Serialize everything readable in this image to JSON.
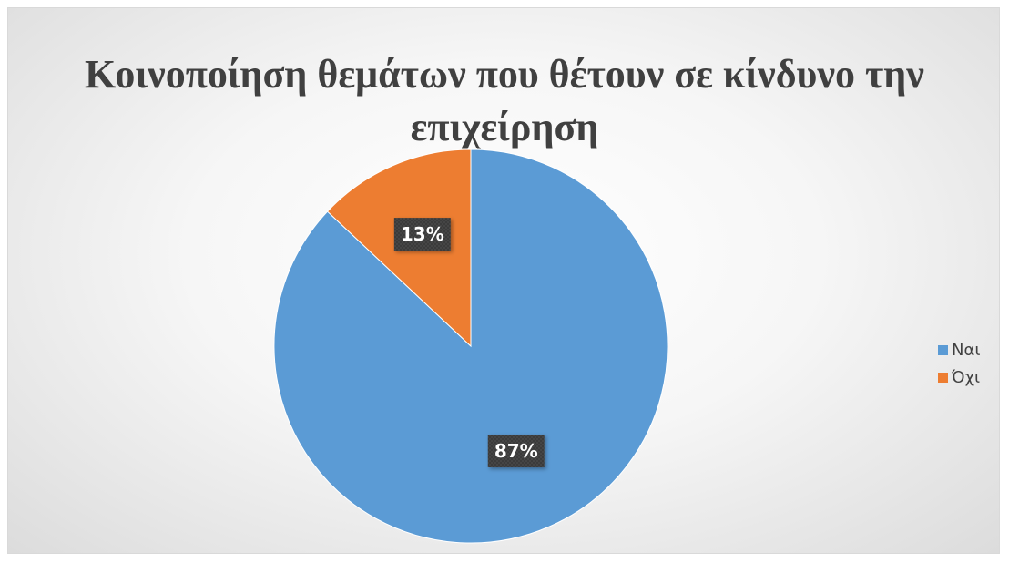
{
  "chart_data": {
    "type": "pie",
    "title": "Κοινοποίηση θεμάτων που θέτουν σε κίνδυνο την επιχείρηση",
    "categories": [
      "Ναι",
      "Όχι"
    ],
    "values": [
      87,
      13
    ],
    "data_labels": [
      "87%",
      "13%"
    ],
    "colors": [
      "#5b9bd5",
      "#ed7d31"
    ],
    "legend_position": "right"
  }
}
